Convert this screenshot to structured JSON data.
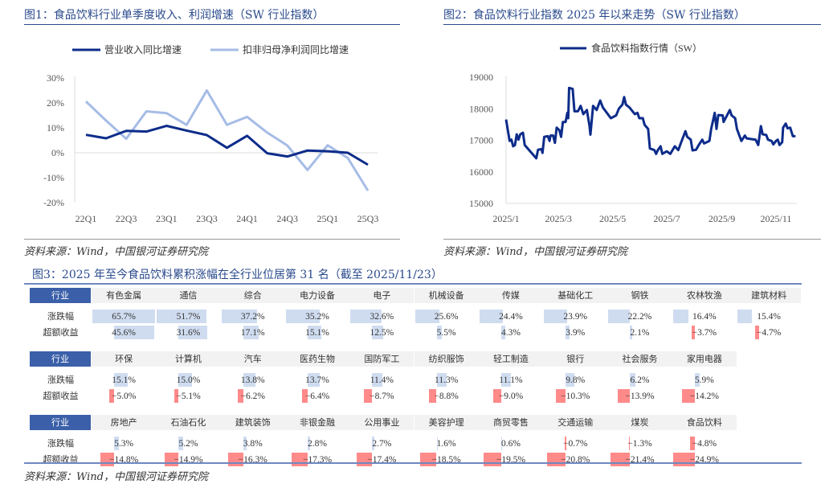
{
  "fig1": {
    "title": "图1：食品饮料行业单季度收入、利润增速（SW 行业指数）",
    "source": "资料来源：Wind，中国银河证券研究院",
    "chart_data": {
      "type": "line",
      "categories": [
        "22Q1",
        "22Q2",
        "22Q3",
        "22Q4",
        "23Q1",
        "23Q2",
        "23Q3",
        "23Q4",
        "24Q1",
        "24Q2",
        "24Q3",
        "24Q4",
        "25Q1",
        "25Q2",
        "25Q3"
      ],
      "x_tick_labels": [
        "22Q1",
        "22Q3",
        "23Q1",
        "23Q3",
        "24Q1",
        "24Q3",
        "25Q1",
        "25Q3"
      ],
      "y_tick_labels": [
        "30%",
        "20%",
        "10%",
        "0%",
        "-10%",
        "-20%"
      ],
      "ylim": [
        -20,
        30
      ],
      "legend_position": "top",
      "series": [
        {
          "name": "营业收入同比增速",
          "color": "#0d2c8a",
          "values": [
            7.2,
            5.8,
            8.8,
            8.5,
            10.8,
            8.9,
            7.1,
            2.0,
            6.8,
            -0.2,
            -1.5,
            0.9,
            0.6,
            0.0,
            -4.8
          ]
        },
        {
          "name": "扣非归母净利润同比增速",
          "color": "#a6bce6",
          "values": [
            20.6,
            12.9,
            5.6,
            16.6,
            15.9,
            11.2,
            25.0,
            11.2,
            14.4,
            8.1,
            2.9,
            -6.9,
            3.0,
            -2.1,
            -15.2
          ]
        }
      ]
    }
  },
  "fig2": {
    "title": "图2：食品饮料行业指数 2025 年以来走势（SW 行业指数）",
    "source": "资料来源：Wind，中国银河证券研究院",
    "chart_data": {
      "type": "line",
      "ylim": [
        15000,
        19000
      ],
      "y_tick_labels": [
        "19000",
        "18000",
        "17000",
        "16000",
        "15000"
      ],
      "x_tick_labels": [
        "2025/1",
        "2025/3",
        "2025/5",
        "2025/7",
        "2025/9",
        "2025/11"
      ],
      "legend_position": "top",
      "series": [
        {
          "name": "食品饮料指数行情（SW）",
          "color": "#0d2c8a",
          "dates": [
            "2025-01-01",
            "2025-01-03",
            "2025-01-05",
            "2025-01-07",
            "2025-01-09",
            "2025-01-11",
            "2025-01-13",
            "2025-01-15",
            "2025-01-17",
            "2025-01-20",
            "2025-01-22",
            "2025-01-26",
            "2025-02-04",
            "2025-02-06",
            "2025-02-10",
            "2025-02-11",
            "2025-02-13",
            "2025-02-17",
            "2025-02-19",
            "2025-02-20",
            "2025-02-23",
            "2025-02-25",
            "2025-02-27",
            "2025-03-02",
            "2025-03-04",
            "2025-03-06",
            "2025-03-09",
            "2025-03-11",
            "2025-03-12",
            "2025-03-13",
            "2025-03-17",
            "2025-03-19",
            "2025-03-23",
            "2025-03-26",
            "2025-03-29",
            "2025-04-02",
            "2025-04-05",
            "2025-04-06",
            "2025-04-09",
            "2025-04-13",
            "2025-04-17",
            "2025-04-20",
            "2025-04-29",
            "2025-05-05",
            "2025-05-08",
            "2025-05-12",
            "2025-05-14",
            "2025-05-16",
            "2025-05-20",
            "2025-05-26",
            "2025-05-29",
            "2025-05-31",
            "2025-06-04",
            "2025-06-06",
            "2025-06-10",
            "2025-06-12",
            "2025-06-17",
            "2025-06-19",
            "2025-06-21",
            "2025-06-24",
            "2025-06-26",
            "2025-07-01",
            "2025-07-05",
            "2025-07-10",
            "2025-07-14",
            "2025-07-17",
            "2025-07-22",
            "2025-07-24",
            "2025-07-28",
            "2025-07-30",
            "2025-08-03",
            "2025-08-06",
            "2025-08-10",
            "2025-08-12",
            "2025-08-18",
            "2025-08-20",
            "2025-08-24",
            "2025-08-26",
            "2025-08-28",
            "2025-09-02",
            "2025-09-03",
            "2025-09-10",
            "2025-09-12",
            "2025-09-16",
            "2025-09-18",
            "2025-09-23",
            "2025-09-27",
            "2025-09-29",
            "2025-10-09",
            "2025-10-12",
            "2025-10-15",
            "2025-10-17",
            "2025-10-21",
            "2025-10-23",
            "2025-10-27",
            "2025-10-29",
            "2025-11-01",
            "2025-11-03",
            "2025-11-05",
            "2025-11-08",
            "2025-11-09",
            "2025-11-12",
            "2025-11-14",
            "2025-11-17",
            "2025-11-20",
            "2025-11-23"
          ],
          "values": [
            17660,
            17320,
            16980,
            17020,
            16810,
            16850,
            17190,
            17020,
            17190,
            17240,
            16850,
            16720,
            16430,
            16700,
            16720,
            16600,
            17110,
            17130,
            16980,
            17150,
            17150,
            16920,
            17400,
            17320,
            17110,
            17580,
            17580,
            17870,
            17700,
            18660,
            18630,
            17920,
            17920,
            18090,
            17830,
            17960,
            17450,
            17180,
            18090,
            17960,
            18260,
            18040,
            17700,
            17790,
            18000,
            18130,
            18370,
            18130,
            18040,
            17830,
            17870,
            17700,
            17700,
            17490,
            17360,
            16740,
            16690,
            16570,
            16690,
            16810,
            16570,
            16650,
            16570,
            16810,
            16690,
            16920,
            17290,
            17110,
            17020,
            16680,
            16700,
            16850,
            17020,
            16900,
            16980,
            17360,
            17870,
            17360,
            17800,
            17790,
            17580,
            17960,
            17790,
            17700,
            17360,
            16980,
            17150,
            17060,
            17020,
            16850,
            17450,
            17190,
            17170,
            17020,
            16980,
            16870,
            16980,
            17020,
            16850,
            16940,
            17400,
            17530,
            17380,
            17400,
            17130,
            17130
          ]
        }
      ]
    }
  },
  "fig3": {
    "title": "图3：2025 年至今食品饮料累积涨幅在全行业位居第 31 名（截至 2025/11/23）",
    "source": "资料来源：Wind，中国银河证券研究院",
    "header_label": "行业",
    "row_labels": [
      "涨跌幅",
      "超额收益"
    ],
    "colors": {
      "positive_bar": "#cfdcf0",
      "negative_bar": "#ff8a8a",
      "header_label_bg": "#3b60a9"
    },
    "blocks": [
      {
        "industries": [
          "有色金属",
          "通信",
          "综合",
          "电力设备",
          "电子",
          "机械设备",
          "传媒",
          "基础化工",
          "钢铁",
          "农林牧渔",
          "建筑材料"
        ],
        "change": [
          "65.7%",
          "51.7%",
          "37.2%",
          "35.2%",
          "32.6%",
          "25.6%",
          "24.4%",
          "23.9%",
          "22.2%",
          "16.4%",
          "15.4%"
        ],
        "excess": [
          "45.6%",
          "31.6%",
          "17.1%",
          "15.1%",
          "12.5%",
          "5.5%",
          "4.3%",
          "3.9%",
          "2.1%",
          "−3.7%",
          "−4.7%"
        ]
      },
      {
        "industries": [
          "环保",
          "计算机",
          "汽车",
          "医药生物",
          "国防军工",
          "纺织服饰",
          "轻工制造",
          "银行",
          "社会服务",
          "家用电器"
        ],
        "change": [
          "15.1%",
          "15.0%",
          "13.8%",
          "13.7%",
          "11.4%",
          "11.3%",
          "11.1%",
          "9.8%",
          "6.2%",
          "5.9%"
        ],
        "excess": [
          "−5.0%",
          "−5.1%",
          "−6.2%",
          "−6.4%",
          "−8.7%",
          "−8.8%",
          "−9.0%",
          "−10.3%",
          "−13.9%",
          "−14.2%"
        ]
      },
      {
        "industries": [
          "房地产",
          "石油石化",
          "建筑装饰",
          "非银金融",
          "公用事业",
          "美容护理",
          "商贸零售",
          "交通运输",
          "煤炭",
          "食品饮料"
        ],
        "change": [
          "5.3%",
          "5.2%",
          "3.8%",
          "2.8%",
          "2.7%",
          "1.6%",
          "0.6%",
          "−0.7%",
          "−1.3%",
          "−4.8%"
        ],
        "excess": [
          "−14.8%",
          "−14.9%",
          "−16.3%",
          "−17.3%",
          "−17.4%",
          "−18.5%",
          "−19.5%",
          "−20.8%",
          "−21.4%",
          "−24.9%"
        ]
      }
    ]
  }
}
